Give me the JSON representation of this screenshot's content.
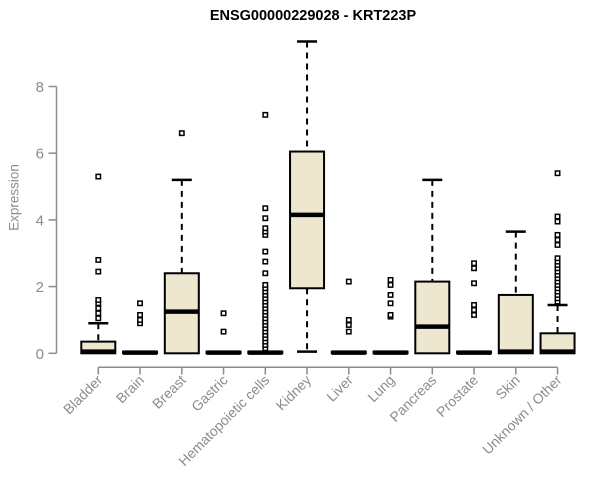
{
  "chart_data": {
    "type": "boxplot",
    "title": "ENSG00000229028 - KRT223P",
    "ylabel": "Expression",
    "xlabel": "",
    "yticks": [
      0,
      2,
      4,
      6,
      8
    ],
    "ylim": [
      0,
      9.6
    ],
    "grid": false,
    "legend": null,
    "categories": [
      "Bladder",
      "Brain",
      "Breast",
      "Gastric",
      "Hematopoietic cells",
      "Kidney",
      "Liver",
      "Lung",
      "Pancreas",
      "Prostate",
      "Skin",
      "Unknown / Other"
    ],
    "series": [
      {
        "category": "Bladder",
        "q1": 0,
        "median": 0.05,
        "q3": 0.35,
        "whisker_low": 0,
        "whisker_high": 0.9,
        "outliers": [
          1.05,
          1.2,
          1.35,
          1.5,
          1.6,
          2.45,
          2.8,
          5.3
        ]
      },
      {
        "category": "Brain",
        "q1": 0,
        "median": 0.02,
        "q3": 0.05,
        "whisker_low": 0,
        "whisker_high": 0.05,
        "outliers": [
          0.9,
          1.0,
          1.15,
          1.5
        ]
      },
      {
        "category": "Breast",
        "q1": 0,
        "median": 1.25,
        "q3": 2.4,
        "whisker_low": 0,
        "whisker_high": 5.2,
        "outliers": [
          6.6
        ]
      },
      {
        "category": "Gastric",
        "q1": 0,
        "median": 0.02,
        "q3": 0.05,
        "whisker_low": 0,
        "whisker_high": 0.05,
        "outliers": [
          0.65,
          1.2
        ]
      },
      {
        "category": "Hematopoietic cells",
        "q1": 0,
        "median": 0.02,
        "q3": 0.05,
        "whisker_low": 0,
        "whisker_high": 0.05,
        "outliers": [
          0.15,
          0.25,
          0.35,
          0.45,
          0.55,
          0.65,
          0.75,
          0.85,
          0.95,
          1.05,
          1.15,
          1.25,
          1.35,
          1.45,
          1.55,
          1.65,
          1.75,
          1.85,
          1.95,
          2.05,
          2.4,
          2.75,
          3.05,
          3.55,
          3.65,
          3.75,
          4.05,
          4.35,
          7.15
        ]
      },
      {
        "category": "Kidney",
        "q1": 1.95,
        "median": 4.15,
        "q3": 6.05,
        "whisker_low": 0.05,
        "whisker_high": 9.35,
        "outliers": []
      },
      {
        "category": "Liver",
        "q1": 0,
        "median": 0.02,
        "q3": 0.05,
        "whisker_low": 0,
        "whisker_high": 0.05,
        "outliers": [
          0.65,
          0.85,
          1.0,
          2.15
        ]
      },
      {
        "category": "Lung",
        "q1": 0,
        "median": 0.02,
        "q3": 0.05,
        "whisker_low": 0,
        "whisker_high": 0.05,
        "outliers": [
          1.1,
          1.15,
          1.5,
          1.75,
          2.05,
          2.2
        ]
      },
      {
        "category": "Pancreas",
        "q1": 0,
        "median": 0.8,
        "q3": 2.15,
        "whisker_low": 0,
        "whisker_high": 5.2,
        "outliers": []
      },
      {
        "category": "Prostate",
        "q1": 0,
        "median": 0.02,
        "q3": 0.05,
        "whisker_low": 0,
        "whisker_high": 0.05,
        "outliers": [
          1.15,
          1.3,
          1.45,
          2.1,
          2.55,
          2.7
        ]
      },
      {
        "category": "Skin",
        "q1": 0,
        "median": 0.05,
        "q3": 1.75,
        "whisker_low": 0,
        "whisker_high": 3.65,
        "outliers": []
      },
      {
        "category": "Unknown / Other",
        "q1": 0,
        "median": 0.05,
        "q3": 0.6,
        "whisker_low": 0,
        "whisker_high": 1.45,
        "outliers": [
          1.55,
          1.65,
          1.75,
          1.85,
          1.95,
          2.05,
          2.15,
          2.25,
          2.35,
          2.45,
          2.55,
          2.65,
          2.75,
          2.85,
          3.25,
          3.4,
          3.55,
          3.95,
          4.1,
          5.4
        ]
      }
    ],
    "colors": {
      "box_fill": "#EDE7CF",
      "box_border": "#000000",
      "median": "#000000",
      "whisker": "#000000",
      "outlier": "#000000",
      "axis": "#8C8C8C",
      "tick_label": "#8C8C8C",
      "title": "#000000"
    }
  }
}
